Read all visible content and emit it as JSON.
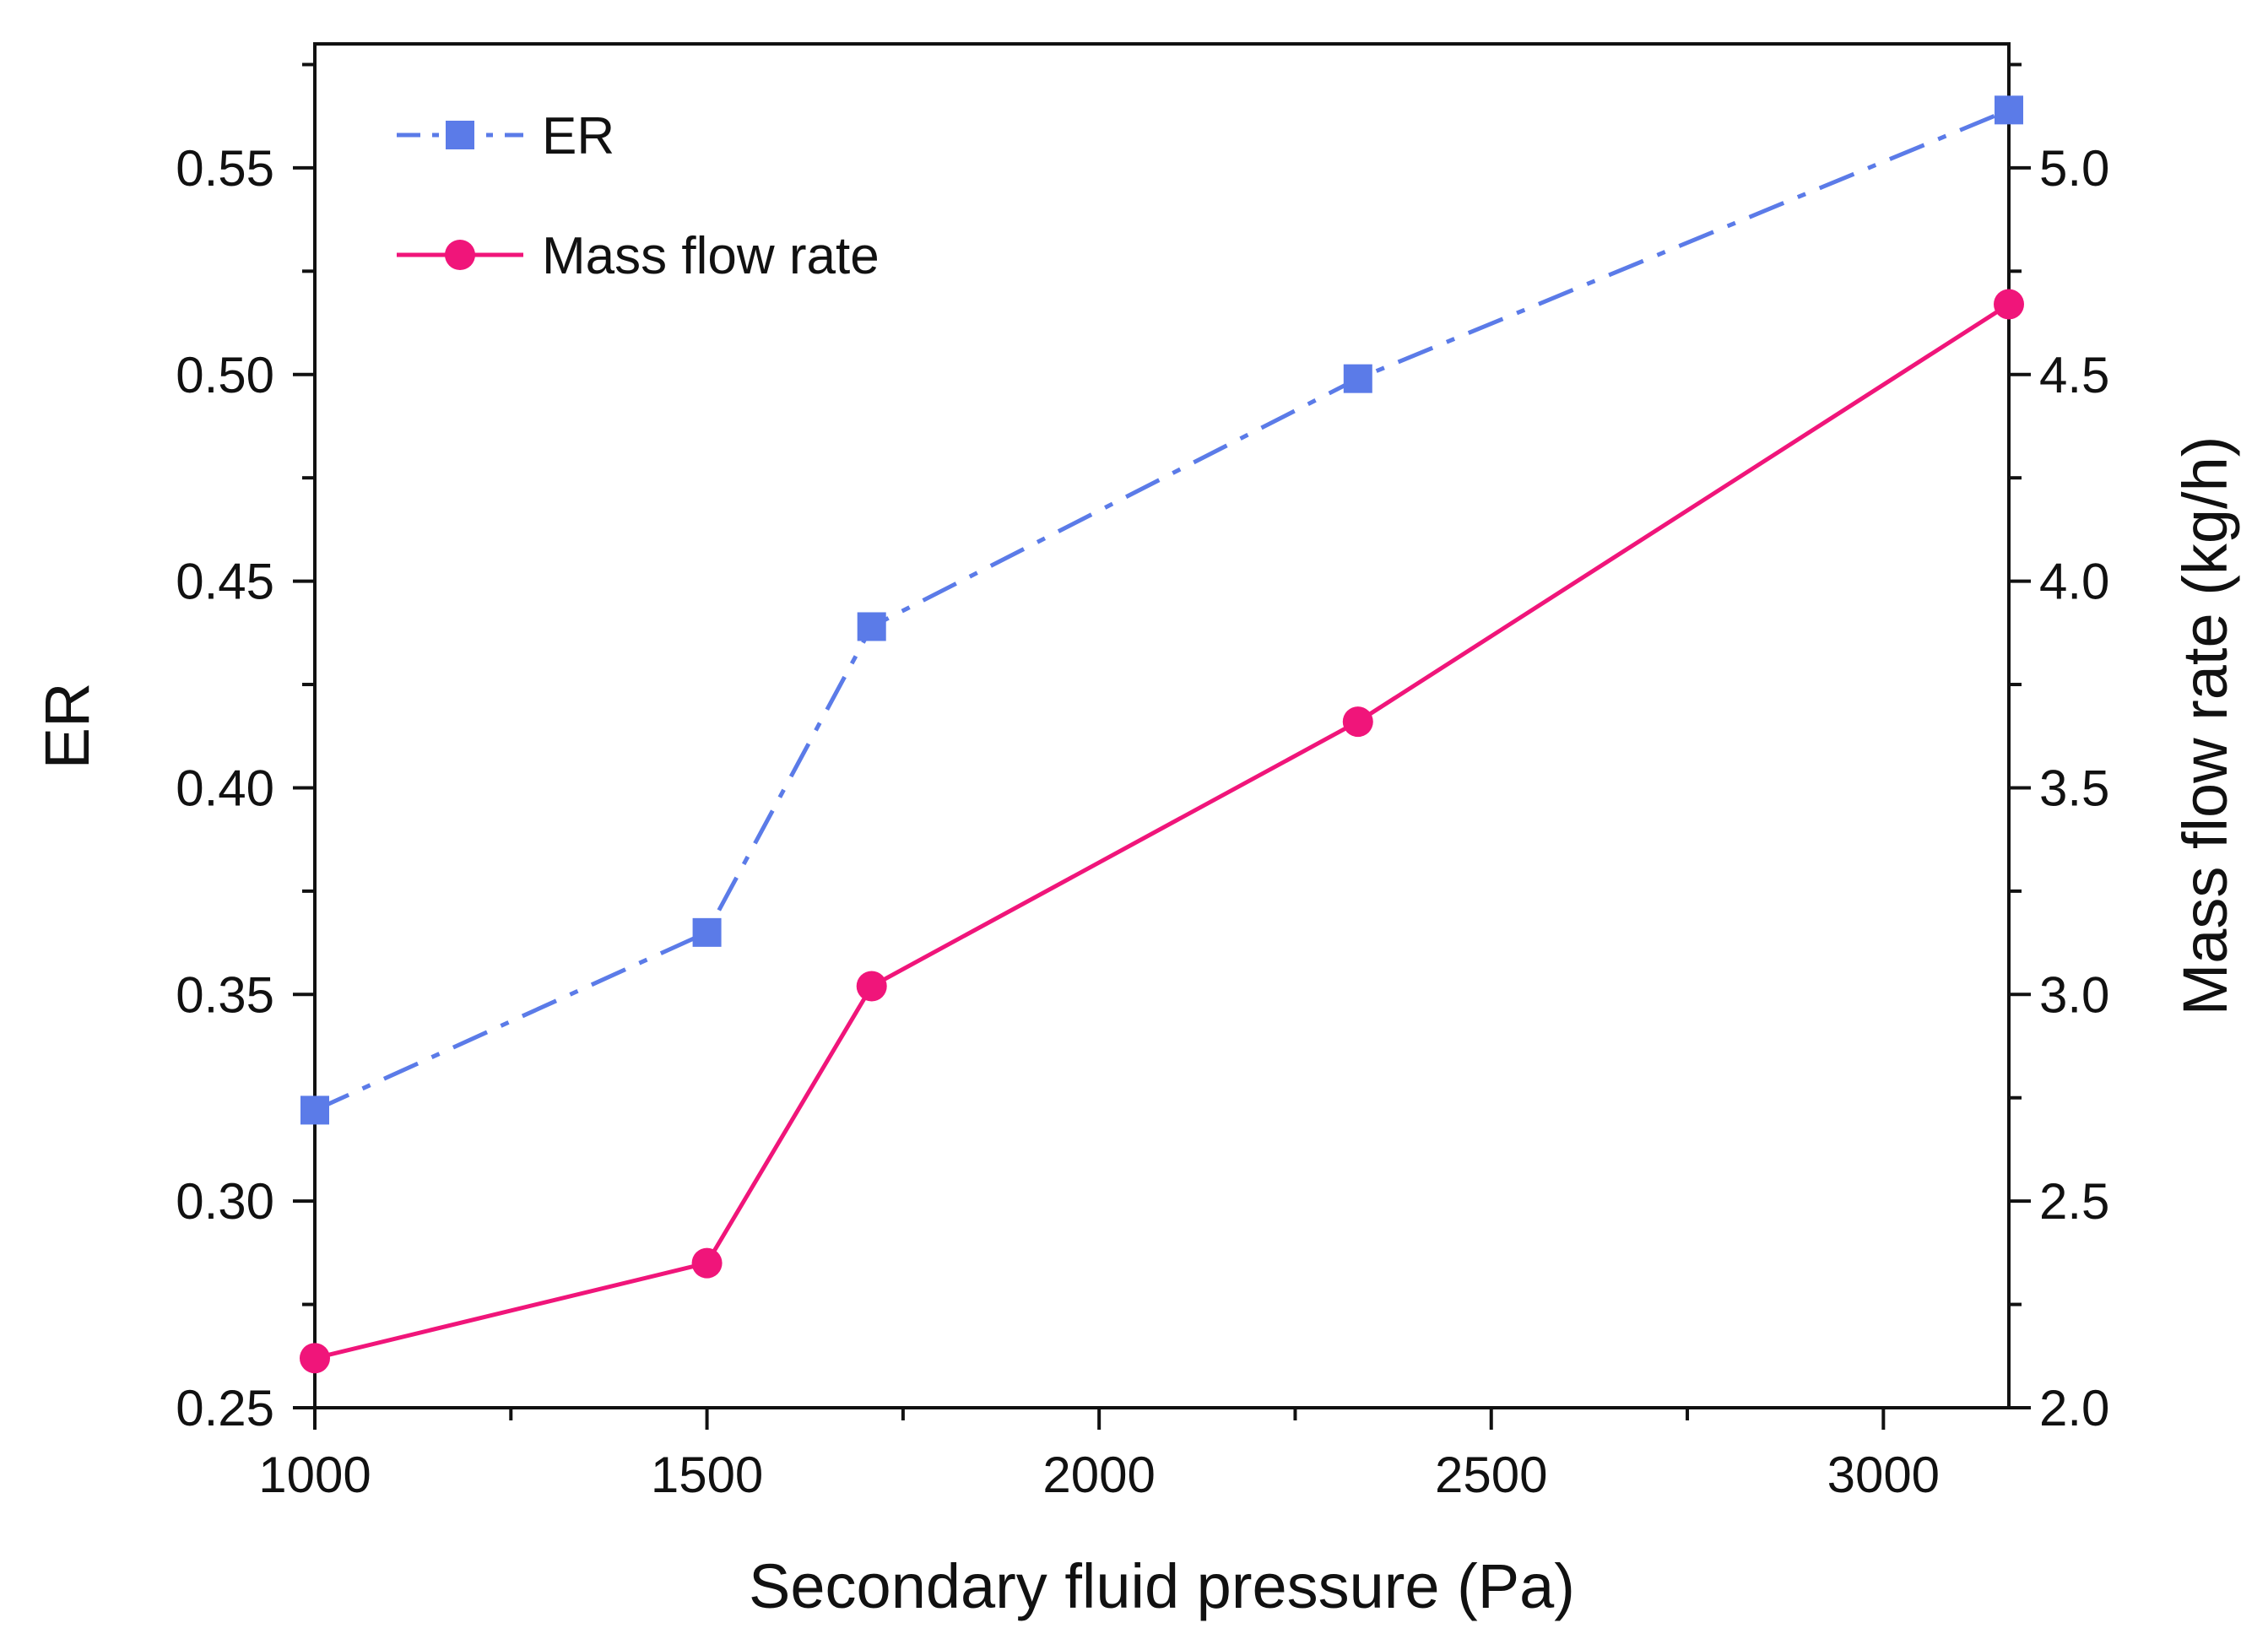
{
  "chart_data": {
    "type": "line",
    "xlabel": "Secondary fluid pressure (Pa)",
    "ylabel": "ER",
    "y2label": "Mass flow rate (kg/h)",
    "xlim": [
      1000,
      3160
    ],
    "ylim": [
      0.25,
      0.58
    ],
    "y2lim": [
      2.0,
      5.3
    ],
    "x_ticks": [
      1000,
      1500,
      2000,
      2500,
      3000
    ],
    "y_ticks": [
      0.25,
      0.3,
      0.35,
      0.4,
      0.45,
      0.5,
      0.55
    ],
    "y2_ticks": [
      2.0,
      2.5,
      3.0,
      3.5,
      4.0,
      4.5,
      5.0
    ],
    "x_tick_labels": [
      "1000",
      "1500",
      "2000",
      "2500",
      "3000"
    ],
    "y_tick_labels": [
      "0.25",
      "0.30",
      "0.35",
      "0.40",
      "0.45",
      "0.50",
      "0.55"
    ],
    "y2_tick_labels": [
      "2.0",
      "2.5",
      "3.0",
      "3.5",
      "4.0",
      "4.5",
      "5.0"
    ],
    "grid": false,
    "legend": "top-left",
    "series": [
      {
        "name": "ER",
        "axis": "left",
        "color": "#5b7be8",
        "marker": "square",
        "line_style": "dash-dot",
        "x": [
          1000,
          1500,
          1710,
          2330,
          3160
        ],
        "values": [
          0.322,
          0.365,
          0.439,
          0.499,
          0.564
        ]
      },
      {
        "name": "Mass flow rate",
        "axis": "right",
        "color": "#f0157a",
        "marker": "circle",
        "line_style": "solid",
        "x": [
          1000,
          1500,
          1710,
          2330,
          3160
        ],
        "values": [
          2.12,
          2.35,
          3.02,
          3.66,
          4.67
        ]
      }
    ]
  }
}
